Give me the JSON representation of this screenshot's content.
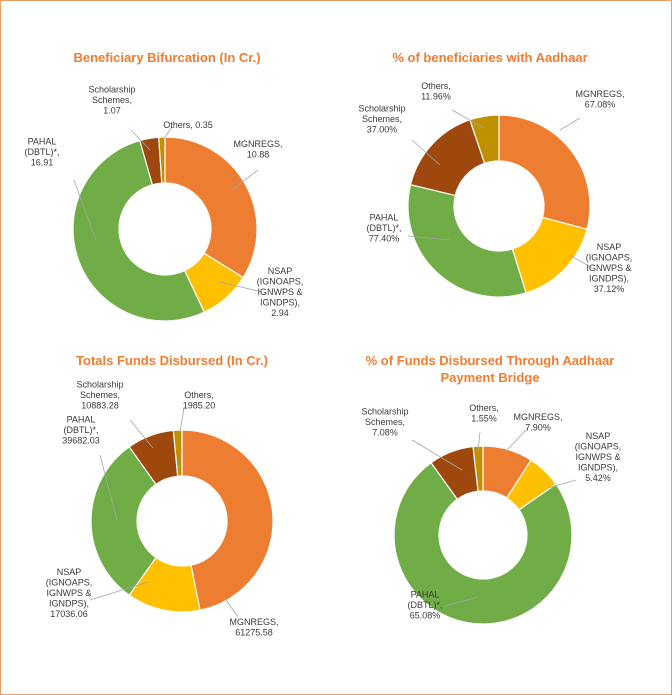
{
  "colors": {
    "MGNREGS": "#ed7d31",
    "NSAP": "#ffc000",
    "PAHAL": "#70ad47",
    "Scholarship": "#9e480e",
    "Others": "#bf9000",
    "title": "#ed7d31",
    "border": "#e8a06a"
  },
  "chart_data": [
    {
      "type": "pie",
      "title": "Beneficiary Bifurcation (In Cr.)",
      "categories": [
        "MGNREGS",
        "NSAP (IGNOAPS, IGNWPS & IGNDPS)",
        "PAHAL (DBTL)*",
        "Scholarship Schemes",
        "Others"
      ],
      "values": [
        10.88,
        2.94,
        16.91,
        1.07,
        0.35
      ],
      "labels": [
        [
          "MGNREGS,",
          "10.88"
        ],
        [
          "NSAP",
          "(IGNOAPS,",
          "IGNWPS &",
          "IGNDPS),",
          "2.94"
        ],
        [
          "PAHAL",
          "(DBTL)*,",
          "16.91"
        ],
        [
          "Scholarship",
          "Schemes,",
          "1.07"
        ],
        [
          "Others, 0.35"
        ]
      ]
    },
    {
      "type": "pie",
      "title": "% of beneficiaries with Aadhaar",
      "categories": [
        "MGNREGS",
        "NSAP (IGNOAPS, IGNWPS & IGNDPS)",
        "PAHAL (DBTL)*",
        "Scholarship Schemes",
        "Others"
      ],
      "values": [
        67.08,
        37.12,
        77.4,
        37.0,
        11.96
      ],
      "labels": [
        [
          "MGNREGS,",
          "67.08%"
        ],
        [
          "NSAP",
          "(IGNOAPS,",
          "IGNWPS &",
          "IGNDPS),",
          "37.12%"
        ],
        [
          "PAHAL",
          "(DBTL)*,",
          "77.40%"
        ],
        [
          "Scholarship",
          "Schemes,",
          "37.00%"
        ],
        [
          "Others,",
          "11.96%"
        ]
      ]
    },
    {
      "type": "pie",
      "title": "Totals Funds Disbursed (In Cr.)",
      "categories": [
        "MGNREGS",
        "NSAP (IGNOAPS, IGNWPS & IGNDPS)",
        "PAHAL (DBTL)*",
        "Scholarship Schemes",
        "Others"
      ],
      "values": [
        61275.58,
        17036.06,
        39682.03,
        10883.28,
        1985.2
      ],
      "labels": [
        [
          "MGNREGS,",
          "61275.58"
        ],
        [
          "NSAP",
          "(IGNOAPS,",
          "IGNWPS &",
          "IGNDPS),",
          "17036.06"
        ],
        [
          "PAHAL",
          "(DBTL)*,",
          "39682.03"
        ],
        [
          "Scholarship",
          "Schemes,",
          "10883.28"
        ],
        [
          "Others,",
          "1985.20"
        ]
      ]
    },
    {
      "type": "pie",
      "title": "% of Funds Disbursed Through Aadhaar Payment Bridge",
      "categories": [
        "MGNREGS",
        "NSAP (IGNOAPS, IGNWPS & IGNDPS)",
        "PAHAL (DBTL)*",
        "Scholarship Schemes",
        "Others"
      ],
      "values": [
        7.9,
        5.42,
        65.08,
        7.08,
        1.55
      ],
      "labels": [
        [
          "MGNREGS,",
          "7.90%"
        ],
        [
          "NSAP",
          "(IGNOAPS,",
          "IGNWPS &",
          "IGNDPS),",
          "5.42%"
        ],
        [
          "PAHAL",
          "(DBTL)*,",
          "65.08%"
        ],
        [
          "Scholarship",
          "Schemes,",
          "7.08%"
        ],
        [
          "Others,",
          "1.55%"
        ]
      ]
    }
  ]
}
